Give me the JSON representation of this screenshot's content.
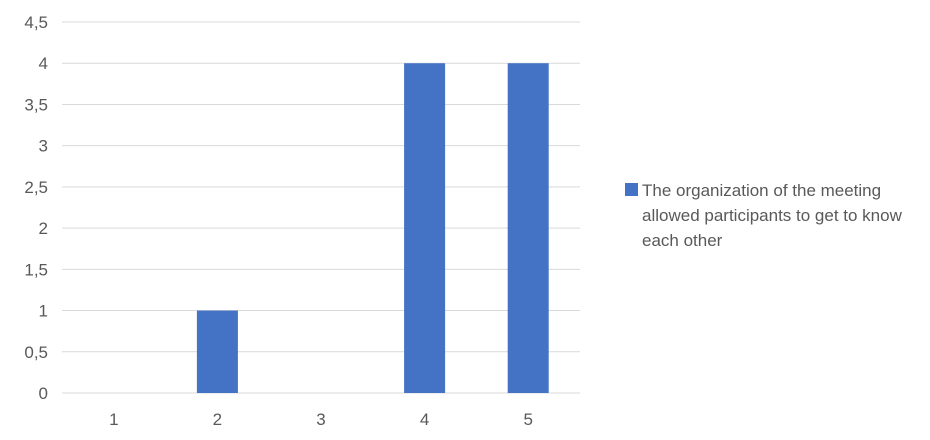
{
  "chart_data": {
    "type": "bar",
    "categories": [
      "1",
      "2",
      "3",
      "4",
      "5"
    ],
    "series": [
      {
        "name": "The organization of the meeting allowed participants to get to know each other",
        "values": [
          0,
          1,
          0,
          4,
          4
        ],
        "color": "#4472C4"
      }
    ],
    "y_ticks": [
      "0",
      "0,5",
      "1",
      "1,5",
      "2",
      "2,5",
      "3",
      "3,5",
      "4",
      "4,5"
    ],
    "ylim": [
      0,
      4.5
    ],
    "grid": true,
    "legend_position": "right"
  }
}
